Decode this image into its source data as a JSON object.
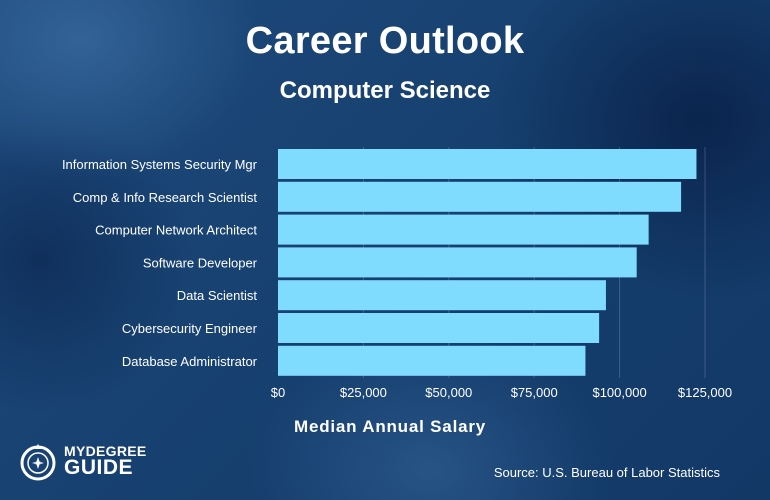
{
  "header": {
    "title": "Career Outlook",
    "subtitle": "Computer Science"
  },
  "footer": {
    "source": "Source: U.S. Bureau of Labor Statistics",
    "logo_top": "MYDEGREE",
    "logo_bottom": "GUIDE"
  },
  "colors": {
    "bar": "#80dcff",
    "grid": "rgba(255,255,255,0.18)",
    "background": "#174170"
  },
  "chart_data": {
    "type": "bar",
    "orientation": "horizontal",
    "categories": [
      "Information Systems Security Mgr",
      "Comp & Info Research Scientist",
      "Computer Network Architect",
      "Software Developer",
      "Data Scientist",
      "Cybersecurity Engineer",
      "Database Administrator"
    ],
    "values": [
      122500,
      118000,
      108500,
      105000,
      96000,
      94000,
      90000
    ],
    "xlabel": "Median Annual Salary",
    "ylabel": "",
    "xlim": [
      0,
      125000
    ],
    "ticks": [
      0,
      25000,
      50000,
      75000,
      100000,
      125000
    ],
    "tick_labels": [
      "$0",
      "$25,000",
      "$50,000",
      "$75,000",
      "$100,000",
      "$125,000"
    ],
    "grid": true
  }
}
